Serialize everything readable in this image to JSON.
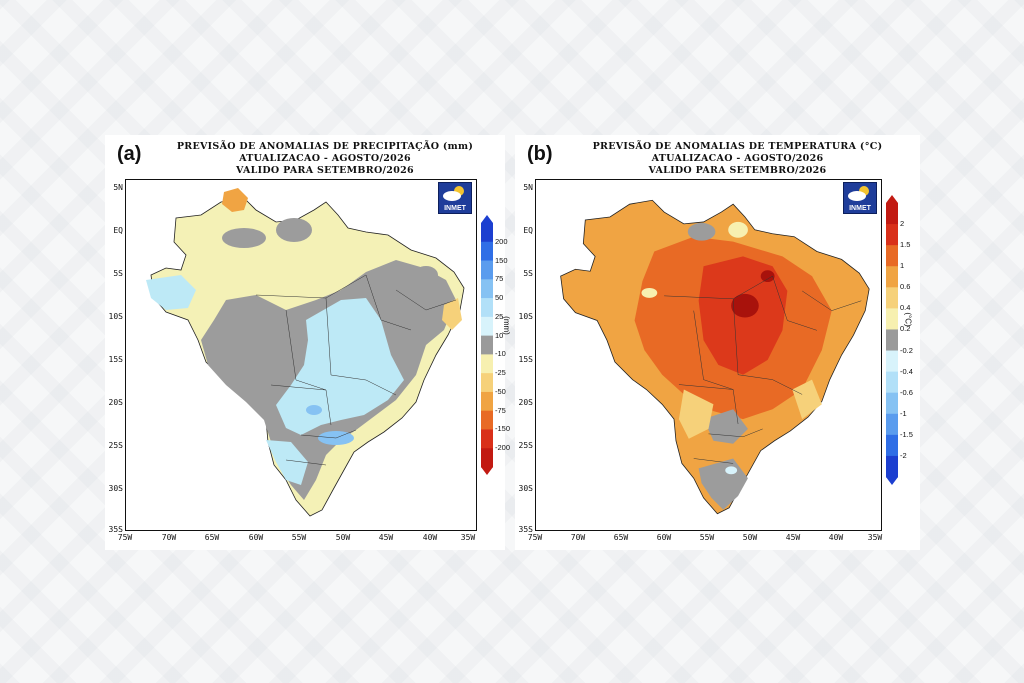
{
  "panels": [
    {
      "letter": "(a)",
      "title_lines": [
        "PREVISÃO DE ANOMALIAS DE PRECIPITAÇÃO (mm)",
        "ATUALIZACAO - AGOSTO/2026",
        "VALIDO PARA SETEMBRO/2026"
      ],
      "units": "(mm)",
      "logo": "INMET",
      "colorbar": {
        "labels": [
          "200",
          "150",
          "75",
          "50",
          "25",
          "10",
          "-10",
          "-25",
          "-50",
          "-75",
          "-150",
          "-200"
        ],
        "colors": [
          "#1c3fd0",
          "#2f6ee6",
          "#5a9cee",
          "#86c2f3",
          "#b2e0f8",
          "#d8f3fb",
          "#9a9a9a",
          "#f7f0b0",
          "#f6d17a",
          "#f0a443",
          "#e86a25",
          "#d9301a",
          "#c21a12"
        ]
      }
    },
    {
      "letter": "(b)",
      "title_lines": [
        "PREVISÃO DE ANOMALIAS DE TEMPERATURA (°C)",
        "ATUALIZACAO - AGOSTO/2026",
        "VALIDO PARA SETEMBRO/2026"
      ],
      "units": "(°C)",
      "logo": "INMET",
      "colorbar": {
        "labels": [
          "2",
          "1.5",
          "1",
          "0.6",
          "0.4",
          "0.2",
          "-0.2",
          "-0.4",
          "-0.6",
          "-1",
          "-1.5",
          "-2"
        ],
        "colors": [
          "#c21a12",
          "#d9301a",
          "#e86a25",
          "#f0a443",
          "#f6d17a",
          "#f7f0b0",
          "#9a9a9a",
          "#d8f3fb",
          "#b2e0f8",
          "#86c2f3",
          "#5a9cee",
          "#2f6ee6",
          "#1c3fd0"
        ]
      }
    }
  ],
  "axes": {
    "y_ticks": [
      "5N",
      "EQ",
      "5S",
      "10S",
      "15S",
      "20S",
      "25S",
      "30S",
      "35S"
    ],
    "x_ticks": [
      "75W",
      "70W",
      "65W",
      "60W",
      "55W",
      "50W",
      "45W",
      "40W",
      "35W"
    ]
  }
}
